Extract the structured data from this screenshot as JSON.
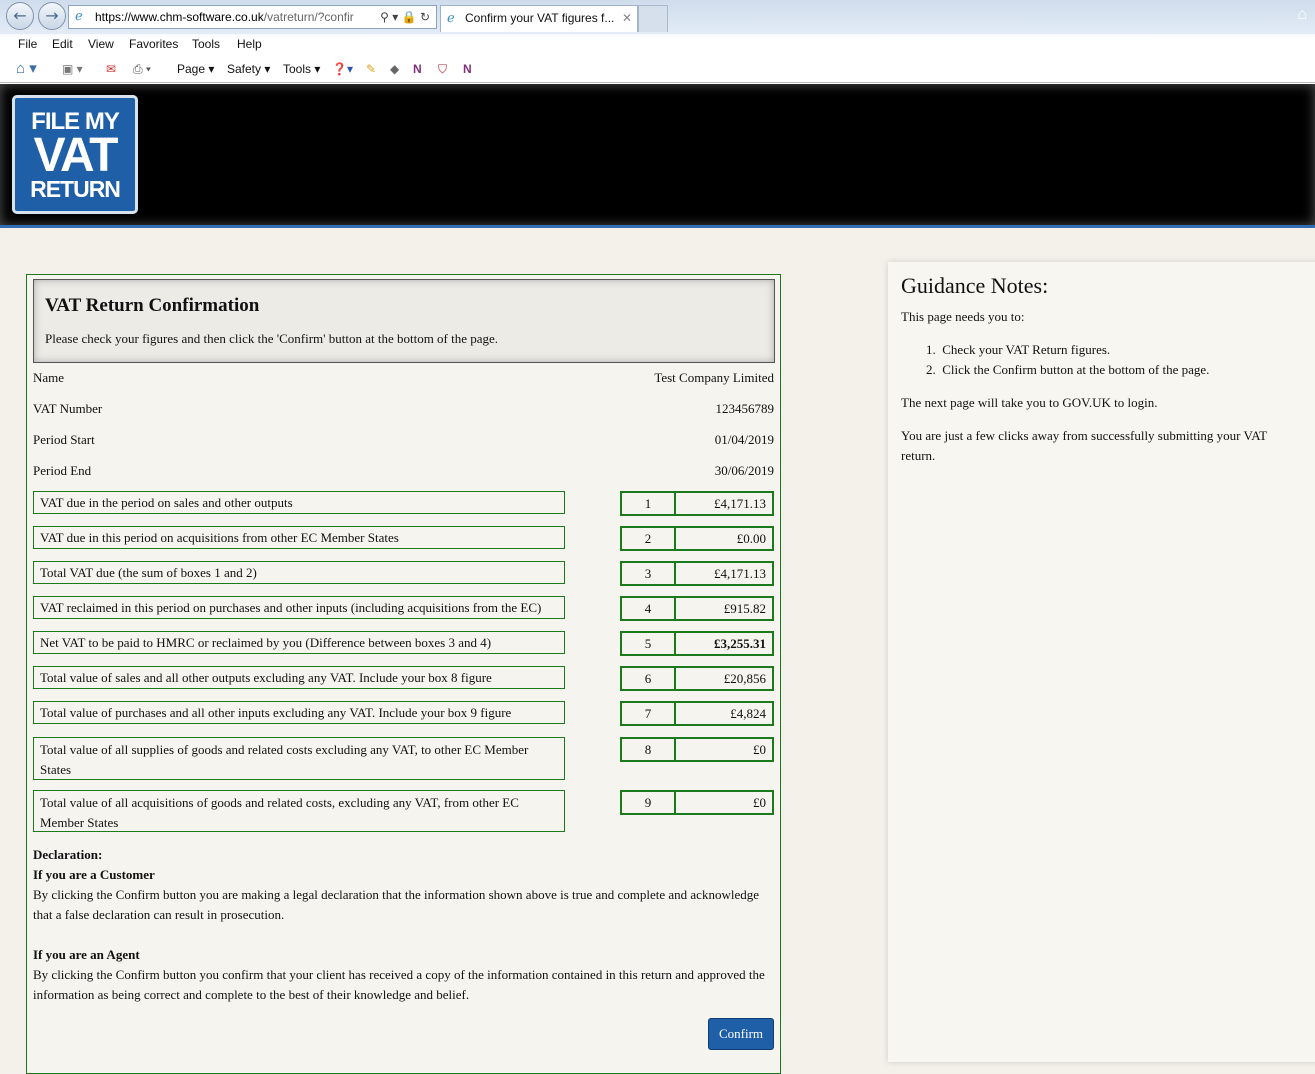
{
  "browser": {
    "url_domain": "https://www.chm-software.co.uk",
    "url_rest": "/vatreturn/?confir",
    "tab_title": "Confirm your VAT figures f...",
    "menu": [
      "File",
      "Edit",
      "View",
      "Favorites",
      "Tools",
      "Help"
    ],
    "commands": {
      "page": "Page ▾",
      "safety": "Safety ▾",
      "tools": "Tools ▾"
    }
  },
  "logo": {
    "line1": "FILE MY",
    "line2": "VAT",
    "line3": "RETURN"
  },
  "main": {
    "title": "VAT Return Confirmation",
    "subtitle": "Please check your figures and then click the 'Confirm' button at the bottom of the page.",
    "info": [
      {
        "label": "Name",
        "value": "Test Company Limited"
      },
      {
        "label": "VAT Number",
        "value": "123456789"
      },
      {
        "label": "Period Start",
        "value": "01/04/2019"
      },
      {
        "label": "Period End",
        "value": "30/06/2019"
      }
    ],
    "boxes": [
      {
        "label": "VAT due in the period on sales and other outputs",
        "num": "1",
        "value": "£4,171.13"
      },
      {
        "label": "VAT due in this period on acquisitions from other EC Member States",
        "num": "2",
        "value": "£0.00"
      },
      {
        "label": "Total VAT due (the sum of boxes 1 and 2)",
        "num": "3",
        "value": "£4,171.13"
      },
      {
        "label": "VAT reclaimed in this period on purchases and other inputs (including acquisitions from the EC)",
        "num": "4",
        "value": "£915.82"
      },
      {
        "label": "Net VAT to be paid to HMRC or reclaimed by you (Difference between boxes 3 and 4)",
        "num": "5",
        "value": "£3,255.31"
      },
      {
        "label": "Total value of sales and all other outputs excluding any VAT. Include your box 8 figure",
        "num": "6",
        "value": "£20,856"
      },
      {
        "label": "Total value of purchases and all other inputs excluding any VAT. Include your box 9 figure",
        "num": "7",
        "value": "£4,824"
      },
      {
        "label": "Total value of all supplies of goods and related costs excluding any VAT, to other EC Member States",
        "num": "8",
        "value": "£0"
      },
      {
        "label": "Total value of all acquisitions of goods and related costs, excluding any VAT, from other EC Member States",
        "num": "9",
        "value": "£0"
      }
    ],
    "declaration": {
      "heading": "Declaration:",
      "customer_heading": "If you are a Customer",
      "customer_text": "By clicking the Confirm button you are making a legal declaration that the information shown above is true and complete and acknowledge that a false declaration can result in prosecution.",
      "agent_heading": "If you are an Agent",
      "agent_text": "By clicking the Confirm button you confirm that your client has received a copy of the information contained in this return and approved the information as being correct and complete to the best of their knowledge and belief."
    },
    "confirm_label": "Confirm"
  },
  "guidance": {
    "title": "Guidance Notes:",
    "intro": "This page needs you to:",
    "steps": [
      "Check your VAT Return figures.",
      "Click the Confirm button at the bottom of the page."
    ],
    "next": "The next page will take you to GOV.UK to login.",
    "closing": "You are just a few clicks away from successfully submitting your VAT return."
  },
  "colors": {
    "accent_green": "#1b7a1b",
    "brand_blue": "#1f5fa8",
    "header": "#000000"
  }
}
